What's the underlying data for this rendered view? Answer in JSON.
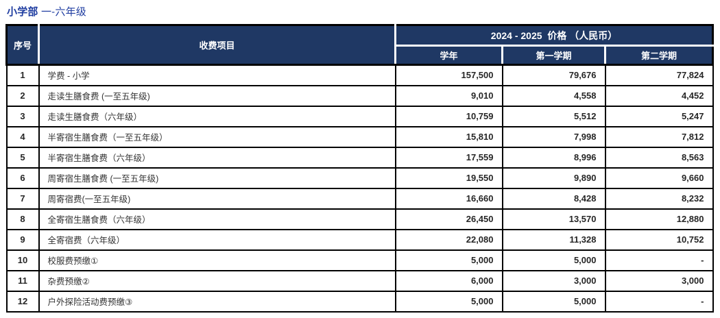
{
  "page_title": {
    "part_bold": "小学部",
    "part_regular": "一-六年级"
  },
  "table": {
    "headers": {
      "serial": "序号",
      "item": "收费项目",
      "price_group": "2024 - 2025  价格 （人民币）",
      "year": "学年",
      "semester1": "第一学期",
      "semester2": "第二学期"
    },
    "rows": [
      {
        "no": "1",
        "item": "学费 - 小学",
        "year": "157,500",
        "semester1": "79,676",
        "semester2": "77,824"
      },
      {
        "no": "2",
        "item": "走读生膳食费 (一至五年级)",
        "year": "9,010",
        "semester1": "4,558",
        "semester2": "4,452"
      },
      {
        "no": "3",
        "item": "走读生膳食费（六年级）",
        "year": "10,759",
        "semester1": "5,512",
        "semester2": "5,247"
      },
      {
        "no": "4",
        "item": "半寄宿生膳食费（一至五年级）",
        "year": "15,810",
        "semester1": "7,998",
        "semester2": "7,812"
      },
      {
        "no": "5",
        "item": "半寄宿生膳食费（六年级）",
        "year": "17,559",
        "semester1": "8,996",
        "semester2": "8,563"
      },
      {
        "no": "6",
        "item": "周寄宿生膳食费 (一至五年级)",
        "year": "19,550",
        "semester1": "9,890",
        "semester2": "9,660"
      },
      {
        "no": "7",
        "item": "周寄宿费(一至五年级)",
        "year": "16,660",
        "semester1": "8,428",
        "semester2": "8,232"
      },
      {
        "no": "8",
        "item": "全寄宿生膳食费（六年级）",
        "year": "26,450",
        "semester1": "13,570",
        "semester2": "12,880"
      },
      {
        "no": "9",
        "item": "全寄宿费（六年级）",
        "year": "22,080",
        "semester1": "11,328",
        "semester2": "10,752"
      },
      {
        "no": "10",
        "item": "校服费预缴①",
        "year": "5,000",
        "semester1": "5,000",
        "semester2": "-"
      },
      {
        "no": "11",
        "item": "杂费预缴②",
        "year": "6,000",
        "semester1": "3,000",
        "semester2": "3,000"
      },
      {
        "no": "12",
        "item": "户外探险活动费预缴③",
        "year": "5,000",
        "semester1": "5,000",
        "semester2": "-"
      }
    ]
  },
  "colors": {
    "header_bg": "#1F3864",
    "title_text": "#1E3CA0",
    "border": "#000000",
    "body_text": "#333333",
    "number_text": "#262626",
    "header_text": "#FFFFFF"
  }
}
